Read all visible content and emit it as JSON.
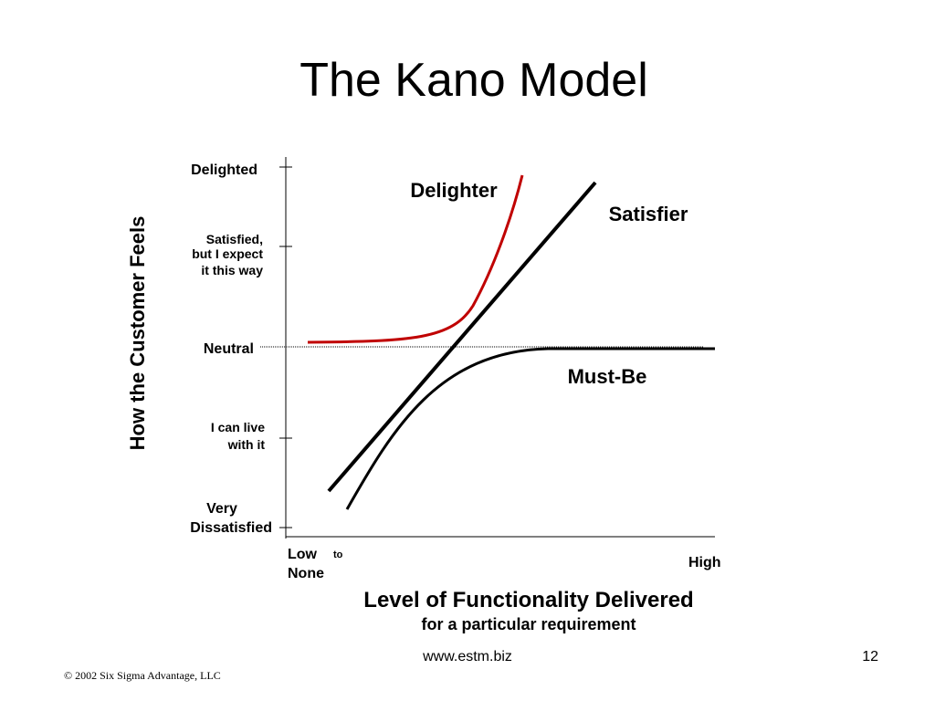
{
  "header": {
    "title": "The Kano Model"
  },
  "diagram": {
    "y_axis_title": "How the Customer Feels",
    "y_levels": [
      {
        "lines": [
          "Delighted"
        ]
      },
      {
        "lines": [
          "Satisfied,",
          "but I expect",
          "it this way"
        ]
      },
      {
        "lines": [
          "Neutral"
        ]
      },
      {
        "lines": [
          "I can live",
          "with it"
        ]
      },
      {
        "lines": [
          "Very",
          "Dissatisfied"
        ]
      }
    ],
    "curves": [
      {
        "label": "Delighter",
        "color": "#c00000"
      },
      {
        "label": "Satisfier",
        "color": "#000000"
      },
      {
        "label": "Must-Be",
        "color": "#000000"
      }
    ],
    "x_low": [
      "Low",
      "None"
    ],
    "x_low_connector": "to",
    "x_high": "High",
    "x_axis_title": "Level of Functionality Delivered",
    "x_axis_subtitle": "for a particular requirement"
  },
  "footer": {
    "url": "www.estm.biz",
    "page": "12",
    "copyright": "© 2002 Six Sigma Advantage, LLC"
  }
}
